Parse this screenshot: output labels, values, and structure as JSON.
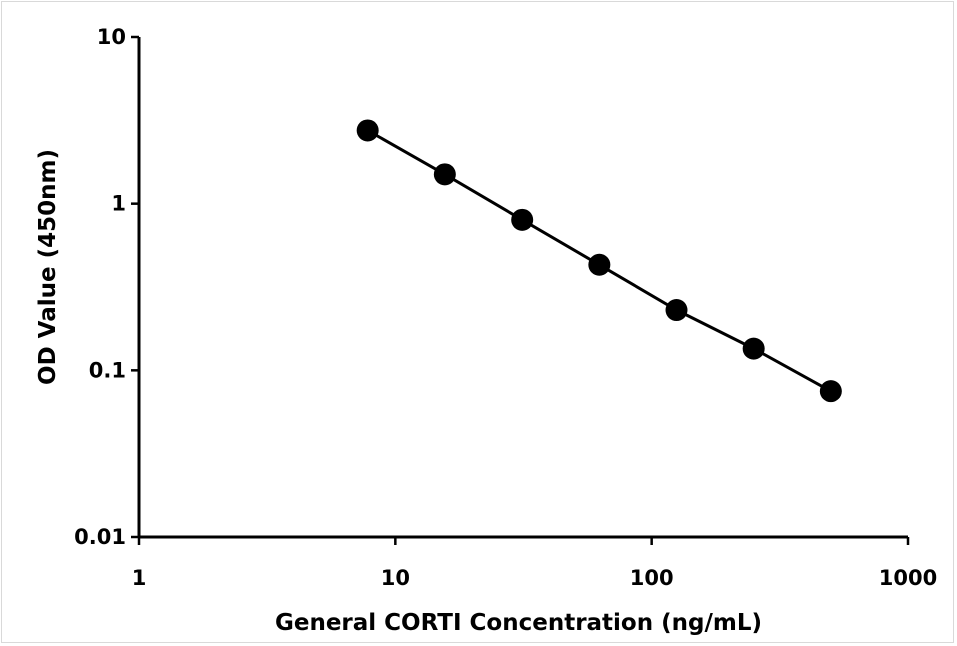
{
  "chart_data": {
    "type": "line",
    "xscale": "log",
    "yscale": "log",
    "xlim": [
      1,
      1000
    ],
    "ylim": [
      0.01,
      10
    ],
    "xticks": [
      1,
      10,
      100,
      1000
    ],
    "xtick_labels": [
      "1",
      "10",
      "100",
      "1000"
    ],
    "yticks": [
      0.01,
      0.1,
      1,
      10
    ],
    "ytick_labels": [
      "0.01",
      "0.1",
      "1",
      "10"
    ],
    "xlabel": "General CORTI Concentration (ng/mL)",
    "ylabel": "OD Value (450nm)",
    "grid": false,
    "legend": "none",
    "series": [
      {
        "x": [
          7.8,
          15.6,
          31.25,
          62.5,
          125,
          250,
          500
        ],
        "y": [
          2.75,
          1.5,
          0.8,
          0.43,
          0.23,
          0.135,
          0.075
        ],
        "color": "#000000",
        "marker": "circle"
      }
    ]
  }
}
